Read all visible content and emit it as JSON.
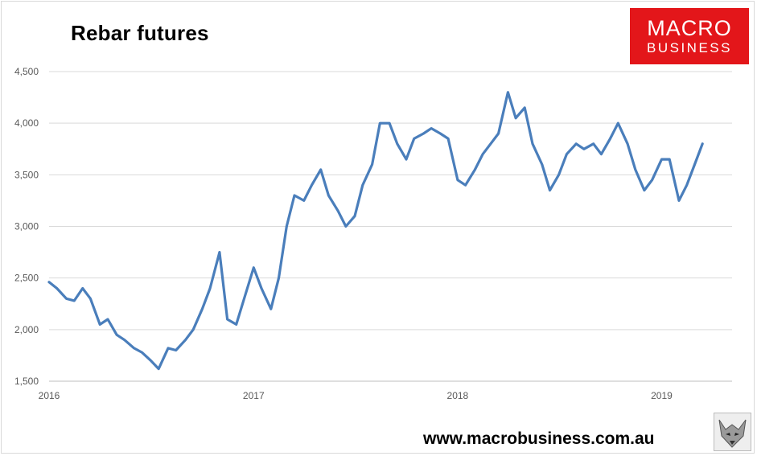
{
  "brand": {
    "logo_line1": "MACRO",
    "logo_line2": "BUSINESS",
    "website": "www.macrobusiness.com.au",
    "logo_color": "#e3161a"
  },
  "chart_data": {
    "type": "line",
    "title": "Rebar futures",
    "xlabel": "",
    "ylabel": "",
    "ylim": [
      1500,
      4500
    ],
    "yticks": [
      1500,
      2000,
      2500,
      3000,
      3500,
      4000,
      4500
    ],
    "ytick_labels": [
      "1,500",
      "2,000",
      "2,500",
      "3,000",
      "3,500",
      "4,000",
      "4,500"
    ],
    "xlim": [
      "2016-01-01",
      "2019-05-07"
    ],
    "xticks": [
      "2016-01-01",
      "2017-01-01",
      "2018-01-01",
      "2019-01-01"
    ],
    "xtick_labels": [
      "2016",
      "2017",
      "2018",
      "2019"
    ],
    "grid": "horizontal",
    "legend": "none",
    "series": [
      {
        "color": "#4a7ebb",
        "x": [
          "2016-01-01",
          "2016-01-15",
          "2016-02-01",
          "2016-02-15",
          "2016-03-01",
          "2016-03-15",
          "2016-04-01",
          "2016-04-15",
          "2016-05-01",
          "2016-05-15",
          "2016-06-01",
          "2016-06-15",
          "2016-07-01",
          "2016-07-15",
          "2016-08-01",
          "2016-08-15",
          "2016-09-01",
          "2016-09-15",
          "2016-10-01",
          "2016-10-15",
          "2016-11-01",
          "2016-11-15",
          "2016-12-01",
          "2016-12-15",
          "2017-01-01",
          "2017-01-15",
          "2017-02-01",
          "2017-02-15",
          "2017-03-01",
          "2017-03-15",
          "2017-04-01",
          "2017-04-15",
          "2017-05-01",
          "2017-05-15",
          "2017-06-01",
          "2017-06-15",
          "2017-07-01",
          "2017-07-15",
          "2017-08-01",
          "2017-08-15",
          "2017-09-01",
          "2017-09-15",
          "2017-10-01",
          "2017-10-15",
          "2017-11-01",
          "2017-11-15",
          "2017-12-01",
          "2017-12-15",
          "2018-01-01",
          "2018-01-15",
          "2018-02-01",
          "2018-02-15",
          "2018-03-01",
          "2018-03-15",
          "2018-04-01",
          "2018-04-15",
          "2018-05-01",
          "2018-05-15",
          "2018-06-01",
          "2018-06-15",
          "2018-07-01",
          "2018-07-15",
          "2018-08-01",
          "2018-08-15",
          "2018-09-01",
          "2018-09-15",
          "2018-10-01",
          "2018-10-15",
          "2018-11-01",
          "2018-11-15",
          "2018-12-01",
          "2018-12-15",
          "2019-01-01",
          "2019-01-15",
          "2019-02-01",
          "2019-02-15",
          "2019-03-01",
          "2019-03-15"
        ],
        "values": [
          2460,
          2400,
          2300,
          2280,
          2400,
          2300,
          2050,
          2100,
          1950,
          1900,
          1820,
          1780,
          1700,
          1620,
          1820,
          1800,
          1900,
          2000,
          2200,
          2400,
          2750,
          2100,
          2050,
          2300,
          2600,
          2400,
          2200,
          2500,
          3000,
          3300,
          3250,
          3400,
          3550,
          3300,
          3150,
          3000,
          3100,
          3400,
          3600,
          4000,
          4000,
          3800,
          3650,
          3850,
          3900,
          3950,
          3900,
          3850,
          3450,
          3400,
          3550,
          3700,
          3800,
          3900,
          4300,
          4050,
          4150,
          3800,
          3600,
          3350,
          3500,
          3700,
          3800,
          3750,
          3800,
          3700,
          3850,
          4000,
          3800,
          3550,
          3350,
          3450,
          3650,
          3650,
          3250,
          3400,
          3600,
          3800
        ]
      }
    ]
  }
}
